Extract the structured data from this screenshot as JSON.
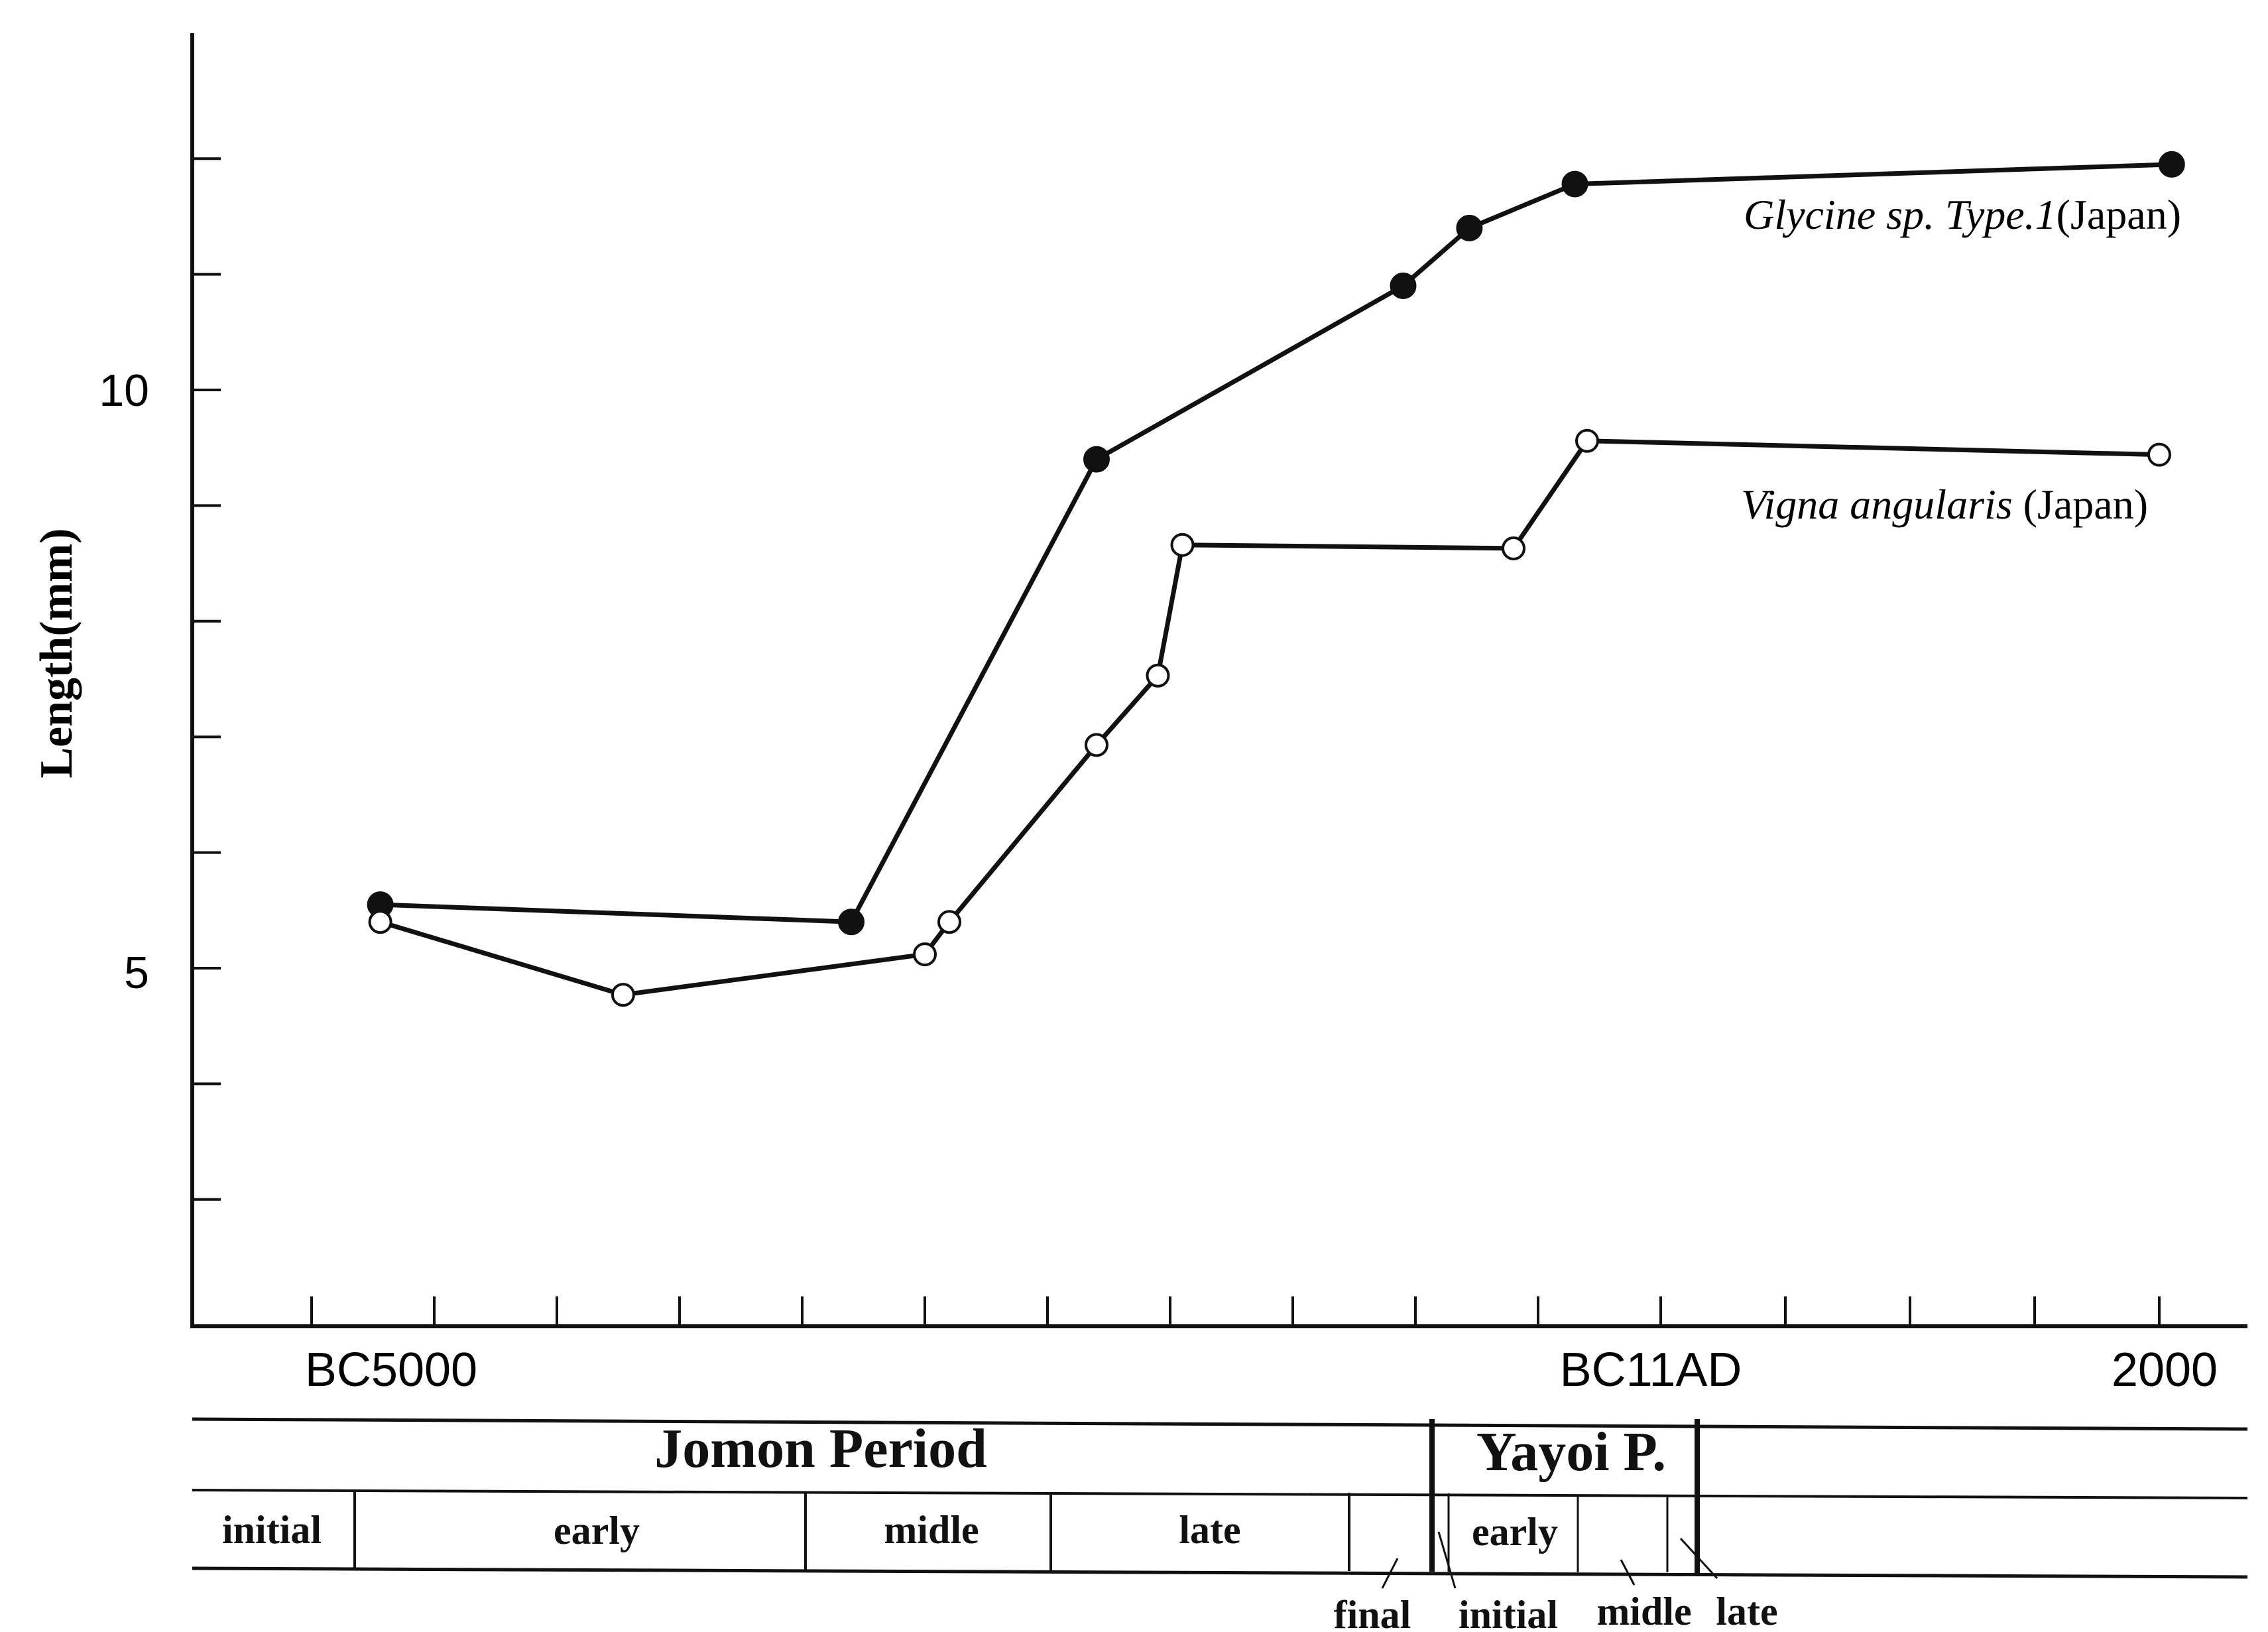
{
  "chart_data": {
    "type": "line",
    "ylabel": "Length(mm)",
    "xlabel": "",
    "ylim": [
      2,
      13
    ],
    "y_ticks": [
      5,
      10
    ],
    "x_ticks": [
      "BC5000",
      "BC11AD",
      "2000"
    ],
    "series": [
      {
        "name": "Glycine sp. Type.1",
        "name_suffix": "(Japan)",
        "marker": "filled-circle",
        "points": [
          {
            "x": -5220,
            "y": 5.55
          },
          {
            "x": -3300,
            "y": 5.4
          },
          {
            "x": -2300,
            "y": 9.4
          },
          {
            "x": -1050,
            "y": 10.9
          },
          {
            "x": -780,
            "y": 11.4
          },
          {
            "x": -350,
            "y": 11.78
          },
          {
            "x": 2050,
            "y": 11.95
          }
        ]
      },
      {
        "name": "Vigna angularis",
        "name_suffix": "(Japan)",
        "marker": "open-circle",
        "points": [
          {
            "x": -5220,
            "y": 5.4
          },
          {
            "x": -4230,
            "y": 4.77
          },
          {
            "x": -3000,
            "y": 5.12
          },
          {
            "x": -2900,
            "y": 5.4
          },
          {
            "x": -2300,
            "y": 6.93
          },
          {
            "x": -2050,
            "y": 7.53
          },
          {
            "x": -1950,
            "y": 8.66
          },
          {
            "x": -600,
            "y": 8.63
          },
          {
            "x": -300,
            "y": 9.56
          },
          {
            "x": 2000,
            "y": 9.44
          }
        ]
      }
    ],
    "periods": {
      "jomon": {
        "label": "Jomon Period",
        "subperiods": [
          "initial",
          "early",
          "midle",
          "late",
          "final"
        ]
      },
      "yayoi": {
        "label": "Yayoi P.",
        "subperiods": [
          "initial",
          "early",
          "midle",
          "late"
        ]
      }
    }
  }
}
